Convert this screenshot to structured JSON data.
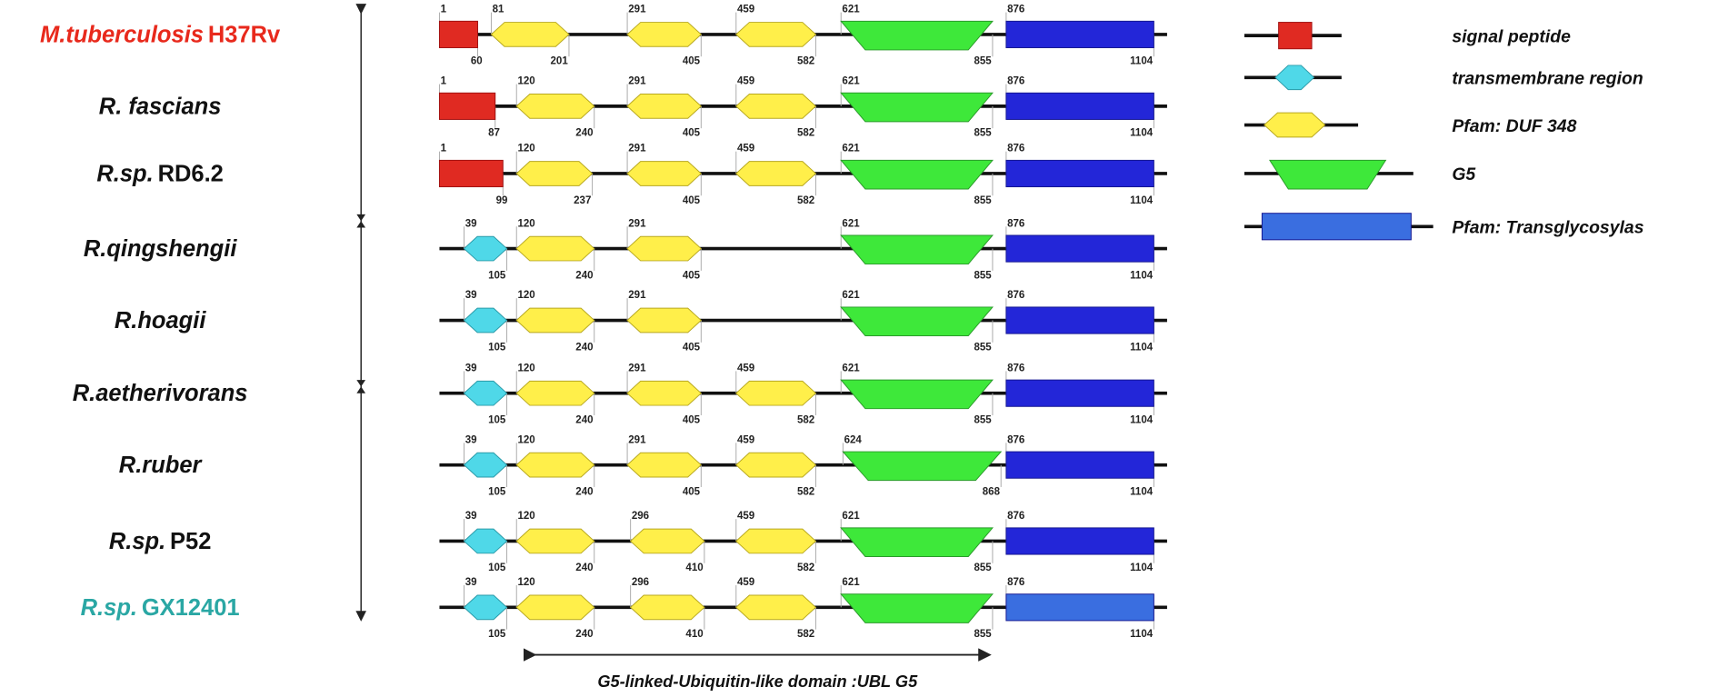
{
  "species": [
    {
      "name_italic": "M.tuberculosis",
      "name_plain": "H37Rv",
      "color": "#e8291c",
      "domains": [
        {
          "type": "signal",
          "start": 1,
          "end": 60
        },
        {
          "type": "duf",
          "start": 81,
          "end": 201
        },
        {
          "type": "duf",
          "start": 291,
          "end": 405
        },
        {
          "type": "duf",
          "start": 459,
          "end": 582
        },
        {
          "type": "g5",
          "start": 621,
          "end": 855
        },
        {
          "type": "trans",
          "start": 876,
          "end": 1104
        }
      ]
    },
    {
      "name_italic": "R. fascians",
      "color": "#111111",
      "domains": [
        {
          "type": "signal",
          "start": 1,
          "end": 87
        },
        {
          "type": "duf",
          "start": 120,
          "end": 240
        },
        {
          "type": "duf",
          "start": 291,
          "end": 405
        },
        {
          "type": "duf",
          "start": 459,
          "end": 582
        },
        {
          "type": "g5",
          "start": 621,
          "end": 855
        },
        {
          "type": "trans",
          "start": 876,
          "end": 1104
        }
      ]
    },
    {
      "name_italic": "R.sp.",
      "name_plain": "RD6.2",
      "color": "#111111",
      "domains": [
        {
          "type": "signal",
          "start": 1,
          "end": 99
        },
        {
          "type": "duf",
          "start": 120,
          "end": 237
        },
        {
          "type": "duf",
          "start": 291,
          "end": 405
        },
        {
          "type": "duf",
          "start": 459,
          "end": 582
        },
        {
          "type": "g5",
          "start": 621,
          "end": 855
        },
        {
          "type": "trans",
          "start": 876,
          "end": 1104
        }
      ]
    },
    {
      "name_italic": "R.qingshengii",
      "color": "#111111",
      "domains": [
        {
          "type": "tm",
          "start": 39,
          "end": 105
        },
        {
          "type": "duf",
          "start": 120,
          "end": 240
        },
        {
          "type": "duf",
          "start": 291,
          "end": 405
        },
        {
          "type": "g5",
          "start": 621,
          "end": 855
        },
        {
          "type": "trans",
          "start": 876,
          "end": 1104
        }
      ]
    },
    {
      "name_italic": "R.hoagii",
      "color": "#111111",
      "domains": [
        {
          "type": "tm",
          "start": 39,
          "end": 105
        },
        {
          "type": "duf",
          "start": 120,
          "end": 240
        },
        {
          "type": "duf",
          "start": 291,
          "end": 405
        },
        {
          "type": "g5",
          "start": 621,
          "end": 855
        },
        {
          "type": "trans",
          "start": 876,
          "end": 1104
        }
      ]
    },
    {
      "name_italic": "R.aetherivorans",
      "color": "#111111",
      "domains": [
        {
          "type": "tm",
          "start": 39,
          "end": 105
        },
        {
          "type": "duf",
          "start": 120,
          "end": 240
        },
        {
          "type": "duf",
          "start": 291,
          "end": 405
        },
        {
          "type": "duf",
          "start": 459,
          "end": 582
        },
        {
          "type": "g5",
          "start": 621,
          "end": 855
        },
        {
          "type": "trans",
          "start": 876,
          "end": 1104
        }
      ]
    },
    {
      "name_italic": "R.ruber",
      "color": "#111111",
      "domains": [
        {
          "type": "tm",
          "start": 39,
          "end": 105
        },
        {
          "type": "duf",
          "start": 120,
          "end": 240
        },
        {
          "type": "duf",
          "start": 291,
          "end": 405
        },
        {
          "type": "duf",
          "start": 459,
          "end": 582
        },
        {
          "type": "g5",
          "start": 624,
          "end": 868
        },
        {
          "type": "trans",
          "start": 876,
          "end": 1104
        }
      ]
    },
    {
      "name_italic": "R.sp.",
      "name_plain": "P52",
      "color": "#111111",
      "domains": [
        {
          "type": "tm",
          "start": 39,
          "end": 105
        },
        {
          "type": "duf",
          "start": 120,
          "end": 240
        },
        {
          "type": "duf",
          "start": 296,
          "end": 410
        },
        {
          "type": "duf",
          "start": 459,
          "end": 582
        },
        {
          "type": "g5",
          "start": 621,
          "end": 855
        },
        {
          "type": "trans",
          "start": 876,
          "end": 1104
        }
      ]
    },
    {
      "name_italic": "R.sp.",
      "name_plain": "GX12401",
      "color": "#2aa7a4",
      "domains": [
        {
          "type": "tm",
          "start": 39,
          "end": 105
        },
        {
          "type": "duf",
          "start": 120,
          "end": 240
        },
        {
          "type": "duf",
          "start": 296,
          "end": 410
        },
        {
          "type": "duf",
          "start": 459,
          "end": 582
        },
        {
          "type": "g5",
          "start": 621,
          "end": 855
        },
        {
          "type": "trans",
          "start": 876,
          "end": 1104,
          "color": "#3a6ee0"
        }
      ]
    }
  ],
  "legend": [
    {
      "type": "signal",
      "label": "signal peptide"
    },
    {
      "type": "tm",
      "label": "transmembrane region"
    },
    {
      "type": "duf",
      "label": "Pfam: DUF 348"
    },
    {
      "type": "g5",
      "label": "G5"
    },
    {
      "type": "trans",
      "label": "Pfam: Transglycosylas",
      "color": "#3a6ee0"
    }
  ],
  "footer": "G5-linked-Ubiquitin-like domain :UBL G5"
}
